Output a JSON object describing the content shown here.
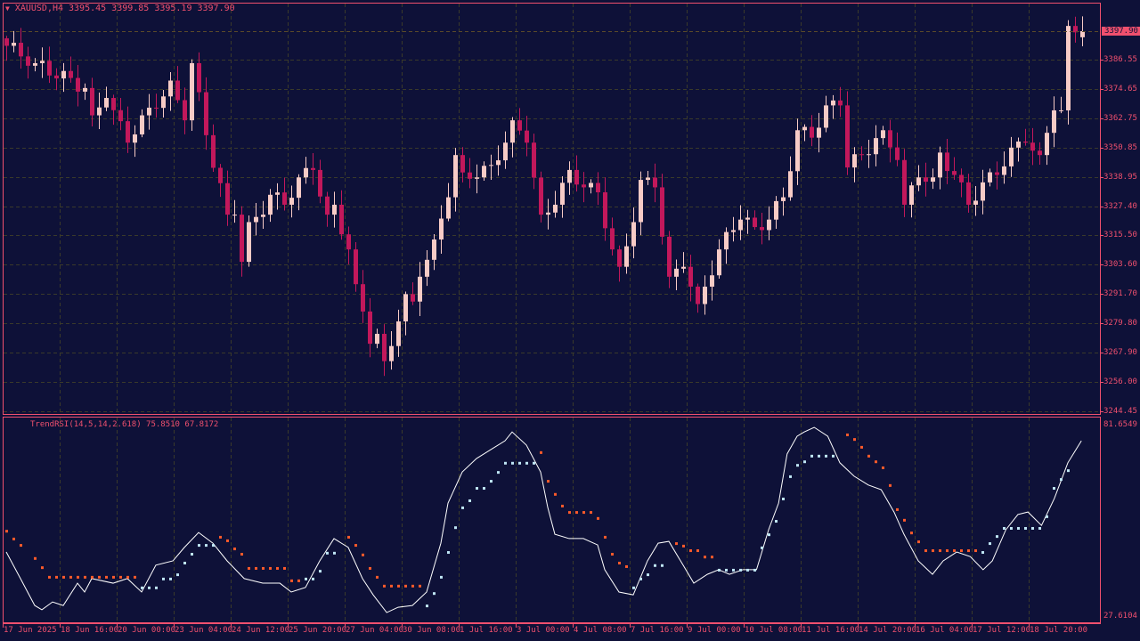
{
  "header": {
    "symbol": "XAUUSD,H4",
    "open": "3395.45",
    "high": "3399.85",
    "low": "3395.19",
    "close": "3397.90"
  },
  "indicator": {
    "title": "TrendRSI(14,5,14,2.618)",
    "value1": "75.8510",
    "value2": "67.8172",
    "axis_max": "81.6549",
    "axis_min": "27.6104"
  },
  "price_axis": {
    "current": "3397.90",
    "labels": [
      "3386.55",
      "3374.65",
      "3362.75",
      "3350.85",
      "3338.95",
      "3327.40",
      "3315.50",
      "3303.60",
      "3291.70",
      "3279.80",
      "3267.90",
      "3256.00",
      "3244.45"
    ]
  },
  "time_axis": [
    "17 Jun 2025",
    "18 Jun 16:00",
    "20 Jun 00:00",
    "23 Jun 04:00",
    "24 Jun 12:00",
    "25 Jun 20:00",
    "27 Jun 04:00",
    "30 Jun 08:00",
    "1 Jul 16:00",
    "3 Jul 00:00",
    "4 Jul 08:00",
    "7 Jul 16:00",
    "9 Jul 00:00",
    "10 Jul 08:00",
    "11 Jul 16:00",
    "14 Jul 20:00",
    "16 Jul 04:00",
    "17 Jul 12:00",
    "18 Jul 20:00"
  ],
  "colors": {
    "background": "#0e1138",
    "axis": "#f0506e",
    "bull": "#f7cbc6",
    "bear": "#c2185b",
    "grid": "#3a3a2a",
    "dot_down": "#ff5a2a",
    "dot_up": "#bfe6f5",
    "rsi_line": "#ffffff"
  },
  "chart_data": {
    "type": "candlestick",
    "symbol": "XAUUSD",
    "timeframe": "H4",
    "ylim": [
      3244.45,
      3400
    ],
    "close_keypoints": [
      [
        0,
        3392
      ],
      [
        4,
        3385
      ],
      [
        11,
        3375
      ],
      [
        12,
        3364
      ],
      [
        14,
        3371
      ],
      [
        17,
        3353
      ],
      [
        19,
        3364
      ],
      [
        21,
        3367
      ],
      [
        23,
        3378
      ],
      [
        25,
        3362
      ],
      [
        26,
        3385
      ],
      [
        28,
        3356
      ],
      [
        31,
        3324
      ],
      [
        32,
        3324
      ],
      [
        33,
        3305
      ],
      [
        34,
        3321
      ],
      [
        36,
        3324
      ],
      [
        37,
        3332
      ],
      [
        39,
        3328
      ],
      [
        41,
        3339
      ],
      [
        43,
        3342
      ],
      [
        45,
        3324
      ],
      [
        46,
        3328
      ],
      [
        48,
        3310
      ],
      [
        49,
        3296
      ],
      [
        50,
        3285
      ],
      [
        51,
        3272
      ],
      [
        52,
        3276
      ],
      [
        53,
        3265
      ],
      [
        55,
        3281
      ],
      [
        56,
        3292
      ],
      [
        57,
        3289
      ],
      [
        58,
        3299
      ],
      [
        60,
        3314
      ],
      [
        62,
        3331
      ],
      [
        63,
        3348
      ],
      [
        64,
        3341
      ],
      [
        66,
        3339
      ],
      [
        68,
        3344
      ],
      [
        70,
        3353
      ],
      [
        71,
        3362
      ],
      [
        73,
        3353
      ],
      [
        75,
        3324
      ],
      [
        77,
        3328
      ],
      [
        79,
        3342
      ],
      [
        81,
        3335
      ],
      [
        83,
        3333
      ],
      [
        85,
        3310
      ],
      [
        86,
        3303
      ],
      [
        88,
        3321
      ],
      [
        89,
        3338
      ],
      [
        91,
        3335
      ],
      [
        93,
        3299
      ],
      [
        95,
        3303
      ],
      [
        97,
        3288
      ],
      [
        98,
        3295
      ],
      [
        100,
        3310
      ],
      [
        101,
        3317
      ],
      [
        103,
        3322
      ],
      [
        105,
        3319
      ],
      [
        107,
        3322
      ],
      [
        109,
        3331
      ],
      [
        111,
        3358
      ],
      [
        113,
        3355
      ],
      [
        115,
        3368
      ],
      [
        117,
        3368
      ],
      [
        118,
        3343
      ],
      [
        120,
        3348
      ],
      [
        123,
        3358
      ],
      [
        125,
        3346
      ],
      [
        126,
        3328
      ],
      [
        128,
        3339
      ],
      [
        130,
        3339
      ],
      [
        131,
        3349
      ],
      [
        133,
        3340
      ],
      [
        135,
        3328
      ],
      [
        137,
        3337
      ],
      [
        139,
        3340
      ],
      [
        141,
        3351
      ],
      [
        143,
        3353
      ],
      [
        145,
        3348
      ],
      [
        147,
        3366
      ],
      [
        148,
        3366
      ],
      [
        149,
        3400
      ],
      [
        151,
        3397.9
      ]
    ],
    "rsi": {
      "ylim": [
        27.6104,
        81.6549
      ],
      "line": [
        [
          0,
          45.7
        ],
        [
          2,
          38.2
        ],
        [
          4,
          30.6
        ],
        [
          5,
          29.4
        ],
        [
          6.5,
          31.6
        ],
        [
          8,
          30.6
        ],
        [
          10,
          36.9
        ],
        [
          11,
          34.4
        ],
        [
          12,
          38.2
        ],
        [
          15,
          36.9
        ],
        [
          17,
          38.2
        ],
        [
          19,
          34.4
        ],
        [
          21,
          42.0
        ],
        [
          23.4,
          43.2
        ],
        [
          25,
          47.0
        ],
        [
          27,
          51.2
        ],
        [
          29,
          48.2
        ],
        [
          31,
          43.2
        ],
        [
          33.4,
          38.2
        ],
        [
          36,
          36.9
        ],
        [
          38.4,
          36.9
        ],
        [
          40,
          34.4
        ],
        [
          42,
          35.7
        ],
        [
          44,
          43.2
        ],
        [
          46,
          49.5
        ],
        [
          48,
          47.0
        ],
        [
          50,
          38.2
        ],
        [
          51.5,
          33.6
        ],
        [
          53.4,
          28.6
        ],
        [
          55,
          30.1
        ],
        [
          57,
          30.6
        ],
        [
          59,
          34.4
        ],
        [
          61,
          48.2
        ],
        [
          62,
          59.5
        ],
        [
          64,
          68.3
        ],
        [
          66,
          72.1
        ],
        [
          68,
          74.6
        ],
        [
          70,
          77.1
        ],
        [
          71,
          79.6
        ],
        [
          73,
          75.9
        ],
        [
          75,
          68.3
        ],
        [
          76,
          58.3
        ],
        [
          77,
          50.7
        ],
        [
          79,
          49.5
        ],
        [
          81,
          49.5
        ],
        [
          83,
          47.7
        ],
        [
          84,
          40.7
        ],
        [
          86,
          34.4
        ],
        [
          88,
          33.6
        ],
        [
          90,
          43.2
        ],
        [
          91.5,
          48.2
        ],
        [
          93,
          48.7
        ],
        [
          95,
          42.0
        ],
        [
          96.5,
          36.9
        ],
        [
          98.4,
          39.4
        ],
        [
          100,
          40.7
        ],
        [
          101.5,
          39.4
        ],
        [
          103.4,
          40.7
        ],
        [
          105.3,
          40.7
        ],
        [
          107,
          52.0
        ],
        [
          108.4,
          59.5
        ],
        [
          109.6,
          73.4
        ],
        [
          111,
          78.4
        ],
        [
          112,
          79.6
        ],
        [
          113.4,
          80.9
        ],
        [
          115.3,
          78.4
        ],
        [
          117,
          70.9
        ],
        [
          119,
          67.1
        ],
        [
          121,
          64.6
        ],
        [
          122.8,
          63.3
        ],
        [
          124.6,
          57.0
        ],
        [
          126,
          50.7
        ],
        [
          128,
          43.2
        ],
        [
          130,
          39.4
        ],
        [
          131.5,
          43.2
        ],
        [
          133.4,
          45.7
        ],
        [
          135.3,
          44.4
        ],
        [
          137.1,
          40.7
        ],
        [
          138.4,
          43.2
        ],
        [
          140.3,
          52.0
        ],
        [
          142,
          56.3
        ],
        [
          143.4,
          57.0
        ],
        [
          145.3,
          53.2
        ],
        [
          147.1,
          60.8
        ],
        [
          149,
          70.9
        ],
        [
          150.9,
          77.1
        ]
      ],
      "dots_down": [
        [
          0,
          0,
          51.7
        ],
        [
          1,
          1,
          49.5
        ],
        [
          2,
          2,
          47.7
        ],
        [
          4,
          4,
          44.0
        ],
        [
          5,
          5,
          41.4
        ],
        [
          6,
          18,
          38.7
        ],
        [
          30,
          30,
          50.0
        ],
        [
          31,
          31,
          49.0
        ],
        [
          32,
          32,
          46.7
        ],
        [
          33,
          33,
          45.2
        ],
        [
          34,
          39,
          41.2
        ],
        [
          40,
          41,
          37.7
        ],
        [
          48,
          48,
          50.0
        ],
        [
          49,
          49,
          47.7
        ],
        [
          50,
          50,
          45.0
        ],
        [
          51,
          51,
          41.2
        ],
        [
          52,
          52,
          38.7
        ],
        [
          53,
          58,
          36.2
        ],
        [
          75,
          75,
          73.9
        ],
        [
          76,
          76,
          65.8
        ],
        [
          77,
          77,
          62.1
        ],
        [
          78,
          78,
          58.8
        ],
        [
          79,
          82,
          57.0
        ],
        [
          83,
          83,
          55.3
        ],
        [
          84,
          84,
          50.0
        ],
        [
          85,
          85,
          45.2
        ],
        [
          86,
          86,
          42.7
        ],
        [
          87,
          87,
          41.7
        ],
        [
          94,
          94,
          48.2
        ],
        [
          95,
          95,
          47.5
        ],
        [
          96,
          97,
          46.2
        ],
        [
          98,
          99,
          44.4
        ],
        [
          118,
          118,
          78.9
        ],
        [
          119,
          119,
          77.6
        ],
        [
          120,
          120,
          75.4
        ],
        [
          121,
          121,
          72.9
        ],
        [
          122,
          122,
          71.3
        ],
        [
          123,
          123,
          69.6
        ],
        [
          124,
          124,
          64.6
        ],
        [
          125,
          125,
          57.8
        ],
        [
          126,
          126,
          54.8
        ],
        [
          127,
          127,
          51.2
        ],
        [
          128,
          128,
          48.7
        ],
        [
          129,
          136,
          46.2
        ]
      ],
      "dots_up": [
        [
          19,
          21,
          35.7
        ],
        [
          22,
          23,
          38.2
        ],
        [
          24,
          24,
          39.4
        ],
        [
          25,
          25,
          42.7
        ],
        [
          26,
          26,
          45.2
        ],
        [
          27,
          29,
          47.7
        ],
        [
          42,
          43,
          38.2
        ],
        [
          44,
          44,
          40.4
        ],
        [
          45,
          46,
          45.5
        ],
        [
          59,
          59,
          30.6
        ],
        [
          60,
          60,
          34.1
        ],
        [
          61,
          61,
          38.7
        ],
        [
          62,
          62,
          45.7
        ],
        [
          63,
          63,
          52.7
        ],
        [
          64,
          64,
          58.3
        ],
        [
          65,
          65,
          60.3
        ],
        [
          66,
          67,
          63.8
        ],
        [
          68,
          68,
          65.8
        ],
        [
          69,
          69,
          68.3
        ],
        [
          70,
          74,
          70.9
        ],
        [
          88,
          88,
          35.7
        ],
        [
          89,
          89,
          38.2
        ],
        [
          90,
          90,
          39.4
        ],
        [
          91,
          92,
          42.0
        ],
        [
          100,
          105,
          40.7
        ],
        [
          106,
          106,
          47.0
        ],
        [
          107,
          107,
          50.7
        ],
        [
          108,
          108,
          54.5
        ],
        [
          109,
          109,
          60.8
        ],
        [
          110,
          110,
          67.1
        ],
        [
          111,
          111,
          70.3
        ],
        [
          112,
          112,
          71.3
        ],
        [
          113,
          116,
          72.9
        ],
        [
          137,
          137,
          45.7
        ],
        [
          138,
          138,
          48.2
        ],
        [
          139,
          139,
          50.2
        ],
        [
          140,
          145,
          52.5
        ],
        [
          146,
          146,
          55.8
        ],
        [
          147,
          147,
          63.8
        ],
        [
          148,
          148,
          66.3
        ],
        [
          149,
          149,
          68.8
        ]
      ]
    }
  }
}
